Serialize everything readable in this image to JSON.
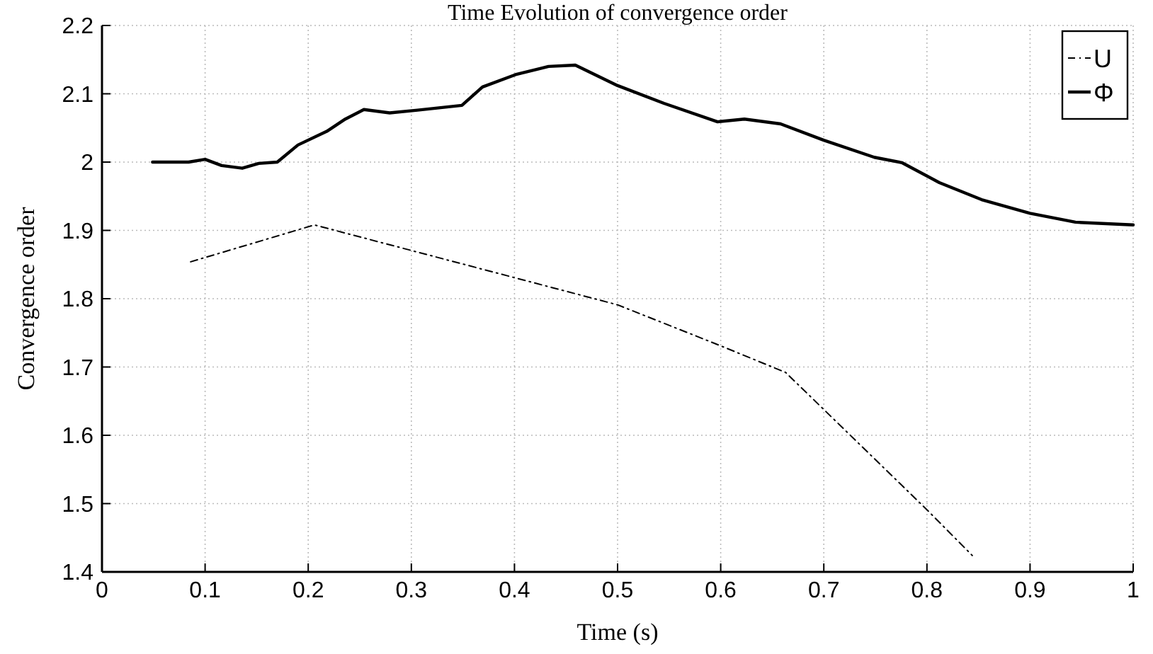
{
  "chart_data": {
    "type": "line",
    "title": "Time Evolution of convergence order",
    "xlabel": "Time (s)",
    "ylabel": "Convergence order",
    "xlim": [
      0,
      1
    ],
    "xticks": [
      0,
      0.1,
      0.2,
      0.3,
      0.4,
      0.5,
      0.6,
      0.7,
      0.8,
      0.9,
      1
    ],
    "ylim": [
      1.4,
      2.2
    ],
    "yticks": [
      1.4,
      1.5,
      1.6,
      1.7,
      1.8,
      1.9,
      2,
      2.1,
      2.2
    ],
    "grid": true,
    "legend": "top right",
    "marker": "none",
    "series": [
      {
        "name": "U",
        "color": "#000000",
        "line_style": "dashed",
        "x": [
          0.086,
          0.206,
          0.5,
          0.6,
          0.663,
          0.8,
          0.844
        ],
        "values": [
          1.854,
          1.908,
          1.791,
          1.731,
          1.692,
          1.491,
          1.424
        ]
      },
      {
        "name": "Φ",
        "color": "#000000",
        "line_style": "solid",
        "x": [
          0.049,
          0.084,
          0.1,
          0.116,
          0.136,
          0.152,
          0.17,
          0.19,
          0.218,
          0.236,
          0.254,
          0.279,
          0.306,
          0.349,
          0.369,
          0.401,
          0.433,
          0.459,
          0.5,
          0.545,
          0.597,
          0.623,
          0.658,
          0.7,
          0.749,
          0.776,
          0.812,
          0.853,
          0.9,
          0.944,
          1
        ],
        "values": [
          2.0,
          2.0,
          2.004,
          1.995,
          1.991,
          1.998,
          2.0,
          2.025,
          2.045,
          2.063,
          2.077,
          2.072,
          2.076,
          2.083,
          2.11,
          2.128,
          2.14,
          2.142,
          2.112,
          2.086,
          2.059,
          2.063,
          2.056,
          2.032,
          2.007,
          1.999,
          1.97,
          1.945,
          1.925,
          1.912,
          1.908
        ]
      }
    ]
  }
}
